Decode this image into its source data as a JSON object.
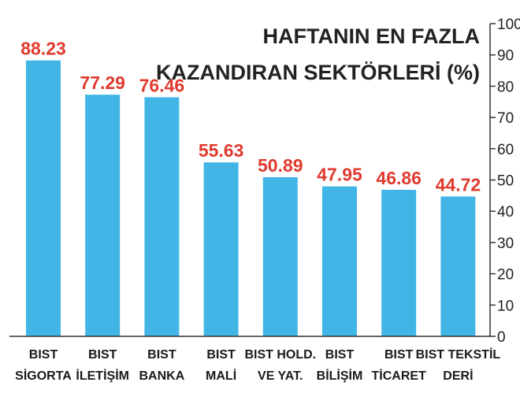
{
  "chart_data": {
    "type": "bar",
    "title_lines": [
      "HAFTANIN EN FAZLA",
      "KAZANDIRAN SEKTÖRLERİ (%)"
    ],
    "categories": [
      [
        "BIST",
        "SİGORTA"
      ],
      [
        "BIST",
        "İLETİŞİM"
      ],
      [
        "BIST",
        "BANKA"
      ],
      [
        "BIST",
        "MALİ"
      ],
      [
        "BIST HOLD.",
        "VE YAT."
      ],
      [
        "BIST",
        "BİLİŞİM"
      ],
      [
        "BIST",
        "TİCARET"
      ],
      [
        "BIST TEKSTİL",
        "DERİ"
      ]
    ],
    "values": [
      88.23,
      77.29,
      76.46,
      55.63,
      50.89,
      47.95,
      46.86,
      44.72
    ],
    "value_labels": [
      "88.23",
      "77.29",
      "76.46",
      "55.63",
      "50.89",
      "47.95",
      "46.86",
      "44.72"
    ],
    "yticks": [
      "0",
      "10",
      "20",
      "30",
      "40",
      "50",
      "60",
      "70",
      "80",
      "90",
      "100"
    ],
    "ylim": [
      0,
      100
    ],
    "y_axis_side": "right",
    "grid": false,
    "colors": {
      "bar": "#41b6e6",
      "value_label": "#e03a2e",
      "text": "#1a1a1a",
      "axis": "#333333"
    }
  }
}
